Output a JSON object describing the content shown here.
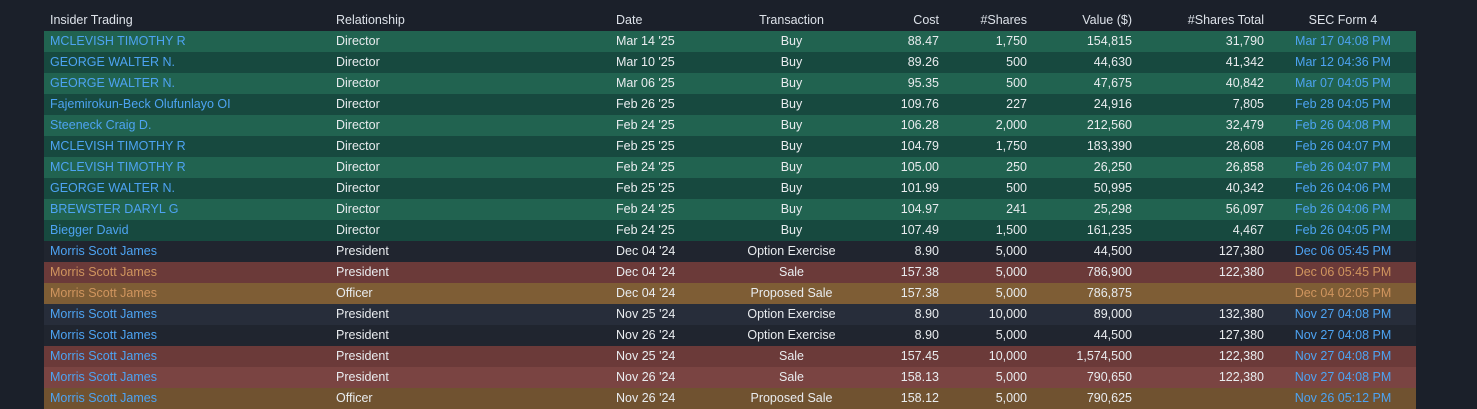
{
  "colors": {
    "page_bg": "#1b202a",
    "header_text": "#dde2e9",
    "cell_text": "#e9ecef",
    "link": "#4da3f2",
    "link_alt": "#d0955e",
    "buy_a": "#216350",
    "buy_b": "#17493f",
    "neutral_a": "#20252f",
    "neutral_b": "#272d3a",
    "sale_a": "#7a4442",
    "sale_b": "#6b3a39",
    "proposed_a": "#7e5d35",
    "proposed_b": "#705230"
  },
  "table": {
    "columns": [
      {
        "key": "insider",
        "label": "Insider Trading",
        "align": "left"
      },
      {
        "key": "relationship",
        "label": "Relationship",
        "align": "left"
      },
      {
        "key": "date",
        "label": "Date",
        "align": "left"
      },
      {
        "key": "transaction",
        "label": "Transaction",
        "align": "center"
      },
      {
        "key": "cost",
        "label": "Cost",
        "align": "right"
      },
      {
        "key": "shares",
        "label": "#Shares",
        "align": "right"
      },
      {
        "key": "value",
        "label": "Value ($)",
        "align": "right"
      },
      {
        "key": "shares_total",
        "label": "#Shares Total",
        "align": "right"
      },
      {
        "key": "sec_form",
        "label": "SEC Form 4",
        "align": "center"
      }
    ],
    "rows": [
      {
        "insider": "MCLEVISH TIMOTHY R",
        "relationship": "Director",
        "date": "Mar 14 '25",
        "transaction": "Buy",
        "cost": "88.47",
        "shares": "1,750",
        "value": "154,815",
        "shares_total": "31,790",
        "sec_form": "Mar 17 04:08 PM",
        "row_type": "buy_a"
      },
      {
        "insider": "GEORGE WALTER N.",
        "relationship": "Director",
        "date": "Mar 10 '25",
        "transaction": "Buy",
        "cost": "89.26",
        "shares": "500",
        "value": "44,630",
        "shares_total": "41,342",
        "sec_form": "Mar 12 04:36 PM",
        "row_type": "buy_b"
      },
      {
        "insider": "GEORGE WALTER N.",
        "relationship": "Director",
        "date": "Mar 06 '25",
        "transaction": "Buy",
        "cost": "95.35",
        "shares": "500",
        "value": "47,675",
        "shares_total": "40,842",
        "sec_form": "Mar 07 04:05 PM",
        "row_type": "buy_a"
      },
      {
        "insider": "Fajemirokun-Beck Olufunlayo OI",
        "relationship": "Director",
        "date": "Feb 26 '25",
        "transaction": "Buy",
        "cost": "109.76",
        "shares": "227",
        "value": "24,916",
        "shares_total": "7,805",
        "sec_form": "Feb 28 04:05 PM",
        "row_type": "buy_b"
      },
      {
        "insider": "Steeneck Craig D.",
        "relationship": "Director",
        "date": "Feb 24 '25",
        "transaction": "Buy",
        "cost": "106.28",
        "shares": "2,000",
        "value": "212,560",
        "shares_total": "32,479",
        "sec_form": "Feb 26 04:08 PM",
        "row_type": "buy_a"
      },
      {
        "insider": "MCLEVISH TIMOTHY R",
        "relationship": "Director",
        "date": "Feb 25 '25",
        "transaction": "Buy",
        "cost": "104.79",
        "shares": "1,750",
        "value": "183,390",
        "shares_total": "28,608",
        "sec_form": "Feb 26 04:07 PM",
        "row_type": "buy_b"
      },
      {
        "insider": "MCLEVISH TIMOTHY R",
        "relationship": "Director",
        "date": "Feb 24 '25",
        "transaction": "Buy",
        "cost": "105.00",
        "shares": "250",
        "value": "26,250",
        "shares_total": "26,858",
        "sec_form": "Feb 26 04:07 PM",
        "row_type": "buy_a"
      },
      {
        "insider": "GEORGE WALTER N.",
        "relationship": "Director",
        "date": "Feb 25 '25",
        "transaction": "Buy",
        "cost": "101.99",
        "shares": "500",
        "value": "50,995",
        "shares_total": "40,342",
        "sec_form": "Feb 26 04:06 PM",
        "row_type": "buy_b"
      },
      {
        "insider": "BREWSTER DARYL G",
        "relationship": "Director",
        "date": "Feb 24 '25",
        "transaction": "Buy",
        "cost": "104.97",
        "shares": "241",
        "value": "25,298",
        "shares_total": "56,097",
        "sec_form": "Feb 26 04:06 PM",
        "row_type": "buy_a"
      },
      {
        "insider": "Biegger David",
        "relationship": "Director",
        "date": "Feb 24 '25",
        "transaction": "Buy",
        "cost": "107.49",
        "shares": "1,500",
        "value": "161,235",
        "shares_total": "4,467",
        "sec_form": "Feb 26 04:05 PM",
        "row_type": "buy_b"
      },
      {
        "insider": "Morris Scott James",
        "relationship": "President",
        "date": "Dec 04 '24",
        "transaction": "Option Exercise",
        "cost": "8.90",
        "shares": "5,000",
        "value": "44,500",
        "shares_total": "127,380",
        "sec_form": "Dec 06 05:45 PM",
        "row_type": "neutral_a"
      },
      {
        "insider": "Morris Scott James",
        "relationship": "President",
        "date": "Dec 04 '24",
        "transaction": "Sale",
        "cost": "157.38",
        "shares": "5,000",
        "value": "786,900",
        "shares_total": "122,380",
        "sec_form": "Dec 06 05:45 PM",
        "row_type": "sale_b",
        "link_variant": "alt"
      },
      {
        "insider": "Morris Scott James",
        "relationship": "Officer",
        "date": "Dec 04 '24",
        "transaction": "Proposed Sale",
        "cost": "157.38",
        "shares": "5,000",
        "value": "786,875",
        "shares_total": "",
        "sec_form": "Dec 04 02:05 PM",
        "row_type": "proposed_a",
        "link_variant": "alt"
      },
      {
        "insider": "Morris Scott James",
        "relationship": "President",
        "date": "Nov 25 '24",
        "transaction": "Option Exercise",
        "cost": "8.90",
        "shares": "10,000",
        "value": "89,000",
        "shares_total": "132,380",
        "sec_form": "Nov 27 04:08 PM",
        "row_type": "neutral_b"
      },
      {
        "insider": "Morris Scott James",
        "relationship": "President",
        "date": "Nov 26 '24",
        "transaction": "Option Exercise",
        "cost": "8.90",
        "shares": "5,000",
        "value": "44,500",
        "shares_total": "127,380",
        "sec_form": "Nov 27 04:08 PM",
        "row_type": "neutral_a"
      },
      {
        "insider": "Morris Scott James",
        "relationship": "President",
        "date": "Nov 25 '24",
        "transaction": "Sale",
        "cost": "157.45",
        "shares": "10,000",
        "value": "1,574,500",
        "shares_total": "122,380",
        "sec_form": "Nov 27 04:08 PM",
        "row_type": "sale_b"
      },
      {
        "insider": "Morris Scott James",
        "relationship": "President",
        "date": "Nov 26 '24",
        "transaction": "Sale",
        "cost": "158.13",
        "shares": "5,000",
        "value": "790,650",
        "shares_total": "122,380",
        "sec_form": "Nov 27 04:08 PM",
        "row_type": "sale_a"
      },
      {
        "insider": "Morris Scott James",
        "relationship": "Officer",
        "date": "Nov 26 '24",
        "transaction": "Proposed Sale",
        "cost": "158.12",
        "shares": "5,000",
        "value": "790,625",
        "shares_total": "",
        "sec_form": "Nov 26 05:12 PM",
        "row_type": "proposed_b"
      }
    ]
  }
}
